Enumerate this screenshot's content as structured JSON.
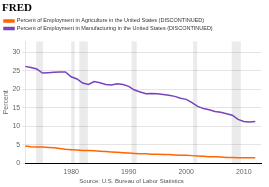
{
  "chart_data": {
    "type": "line",
    "title": "FRED",
    "source": "Source: U.S. Bureau of Labor Statistics",
    "ylabel": "Percent",
    "x": [
      1972,
      1973,
      1974,
      1975,
      1976,
      1977,
      1978,
      1979,
      1980,
      1981,
      1982,
      1983,
      1984,
      1985,
      1986,
      1987,
      1988,
      1989,
      1990,
      1991,
      1992,
      1993,
      1994,
      1995,
      1996,
      1997,
      1998,
      1999,
      2000,
      2001,
      2002,
      2003,
      2004,
      2005,
      2006,
      2007,
      2008,
      2009,
      2010,
      2011,
      2012
    ],
    "series": [
      {
        "name": "Percent of Employment in Agriculture in the United States (DISCONTINUED)",
        "color": "#FF6600",
        "values": [
          4.7,
          4.5,
          4.4,
          4.4,
          4.3,
          4.2,
          4.0,
          3.8,
          3.7,
          3.6,
          3.5,
          3.5,
          3.4,
          3.3,
          3.2,
          3.1,
          3.0,
          2.9,
          2.8,
          2.7,
          2.6,
          2.6,
          2.5,
          2.5,
          2.4,
          2.4,
          2.3,
          2.2,
          2.2,
          2.1,
          2.0,
          1.9,
          1.8,
          1.8,
          1.7,
          1.6,
          1.6,
          1.5,
          1.5,
          1.5,
          1.5
        ]
      },
      {
        "name": "Percent of Employment in Manufacturing in the United States (DISCONTINUED)",
        "color": "#7744BB",
        "values": [
          26.2,
          25.9,
          25.5,
          24.4,
          24.5,
          24.6,
          24.7,
          24.7,
          23.4,
          22.8,
          21.7,
          21.3,
          22.1,
          21.8,
          21.3,
          21.2,
          21.5,
          21.3,
          20.8,
          19.8,
          19.3,
          18.8,
          18.9,
          18.8,
          18.6,
          18.4,
          18.1,
          17.6,
          17.3,
          16.4,
          15.4,
          14.8,
          14.5,
          14.0,
          13.8,
          13.4,
          13.0,
          11.9,
          11.3,
          11.2,
          11.3
        ]
      }
    ],
    "xlim": [
      1972,
      2013
    ],
    "xticks": [
      1980,
      1990,
      2000,
      2010
    ],
    "ylim": [
      0,
      33
    ],
    "yticks": [
      0,
      5,
      10,
      15,
      20,
      25,
      30
    ],
    "grid": "y",
    "legend": "top",
    "shaded_regions": [
      [
        1973.9,
        1975.1
      ],
      [
        1980.0,
        1980.6
      ],
      [
        1981.4,
        1982.9
      ],
      [
        1990.5,
        1991.4
      ],
      [
        2001.2,
        2001.9
      ],
      [
        2007.9,
        2009.5
      ]
    ]
  }
}
